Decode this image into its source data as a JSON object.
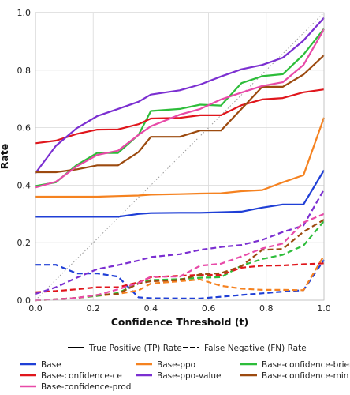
{
  "chart_data": {
    "type": "line",
    "xlabel": "Confidence Threshold (t)",
    "ylabel": "Rate",
    "xlim": [
      0,
      1
    ],
    "ylim": [
      0,
      1
    ],
    "xticks": [
      "0.0",
      "0.2",
      "0.4",
      "0.6",
      "0.8",
      "1.0"
    ],
    "yticks": [
      "0.0",
      "0.2",
      "0.4",
      "0.6",
      "0.8",
      "1.0"
    ],
    "grid": true,
    "diagonal_reference": true,
    "style_legend": [
      {
        "label": "True Positive (TP) Rate",
        "dash": "solid"
      },
      {
        "label": "False Negative (FN) Rate",
        "dash": "dashed"
      }
    ],
    "legend_placement": "bottom",
    "x": [
      0.0,
      0.071,
      0.143,
      0.214,
      0.286,
      0.357,
      0.4,
      0.5,
      0.571,
      0.643,
      0.714,
      0.786,
      0.857,
      0.929,
      1.0
    ],
    "series": [
      {
        "name": "Base",
        "color": "#1f3fd6",
        "tp": [
          0.29,
          0.29,
          0.29,
          0.29,
          0.29,
          0.3,
          0.303,
          0.304,
          0.304,
          0.306,
          0.308,
          0.322,
          0.333,
          0.333,
          0.452
        ],
        "fn": [
          0.123,
          0.123,
          0.093,
          0.093,
          0.082,
          0.01,
          0.007,
          0.006,
          0.006,
          0.012,
          0.018,
          0.024,
          0.03,
          0.035,
          0.14
        ]
      },
      {
        "name": "Base-ppo",
        "color": "#f58220",
        "tp": [
          0.36,
          0.36,
          0.36,
          0.36,
          0.362,
          0.364,
          0.367,
          0.369,
          0.371,
          0.372,
          0.379,
          0.383,
          0.41,
          0.435,
          0.635
        ],
        "fn": [
          0.0,
          0.003,
          0.008,
          0.015,
          0.022,
          0.034,
          0.058,
          0.066,
          0.072,
          0.05,
          0.04,
          0.036,
          0.036,
          0.035,
          0.155
        ]
      },
      {
        "name": "Base-confidence-brier",
        "color": "#2dbd3a",
        "tp": [
          0.397,
          0.41,
          0.47,
          0.512,
          0.512,
          0.575,
          0.658,
          0.665,
          0.68,
          0.677,
          0.755,
          0.779,
          0.786,
          0.854,
          0.944
        ],
        "fn": [
          0.0,
          0.003,
          0.008,
          0.015,
          0.025,
          0.06,
          0.07,
          0.073,
          0.078,
          0.08,
          0.12,
          0.143,
          0.158,
          0.19,
          0.275
        ]
      },
      {
        "name": "Base-confidence-ce",
        "color": "#e0161c",
        "tp": [
          0.546,
          0.555,
          0.578,
          0.593,
          0.594,
          0.612,
          0.632,
          0.634,
          0.643,
          0.643,
          0.678,
          0.698,
          0.703,
          0.723,
          0.733
        ],
        "fn": [
          0.028,
          0.032,
          0.038,
          0.045,
          0.045,
          0.062,
          0.08,
          0.085,
          0.088,
          0.088,
          0.113,
          0.12,
          0.121,
          0.125,
          0.128
        ]
      },
      {
        "name": "Base-ppo-value",
        "color": "#7b2fd1",
        "tp": [
          0.442,
          0.537,
          0.598,
          0.64,
          0.665,
          0.69,
          0.715,
          0.73,
          0.75,
          0.778,
          0.803,
          0.818,
          0.843,
          0.903,
          0.982
        ],
        "fn": [
          0.022,
          0.045,
          0.078,
          0.108,
          0.122,
          0.138,
          0.15,
          0.16,
          0.175,
          0.185,
          0.192,
          0.21,
          0.237,
          0.26,
          0.385
        ]
      },
      {
        "name": "Base-confidence-min",
        "color": "#9c4a0f",
        "tp": [
          0.445,
          0.445,
          0.455,
          0.469,
          0.469,
          0.515,
          0.568,
          0.568,
          0.59,
          0.59,
          0.665,
          0.742,
          0.742,
          0.785,
          0.852
        ],
        "fn": [
          0.0,
          0.003,
          0.008,
          0.018,
          0.022,
          0.058,
          0.066,
          0.07,
          0.09,
          0.094,
          0.118,
          0.175,
          0.178,
          0.238,
          0.28
        ]
      },
      {
        "name": "Base-confidence-prod",
        "color": "#e84aa8",
        "tp": [
          0.392,
          0.412,
          0.465,
          0.505,
          0.52,
          0.575,
          0.605,
          0.645,
          0.665,
          0.698,
          0.722,
          0.745,
          0.758,
          0.818,
          0.942
        ],
        "fn": [
          0.0,
          0.003,
          0.008,
          0.018,
          0.038,
          0.06,
          0.082,
          0.082,
          0.12,
          0.127,
          0.152,
          0.18,
          0.197,
          0.27,
          0.3
        ]
      }
    ]
  }
}
